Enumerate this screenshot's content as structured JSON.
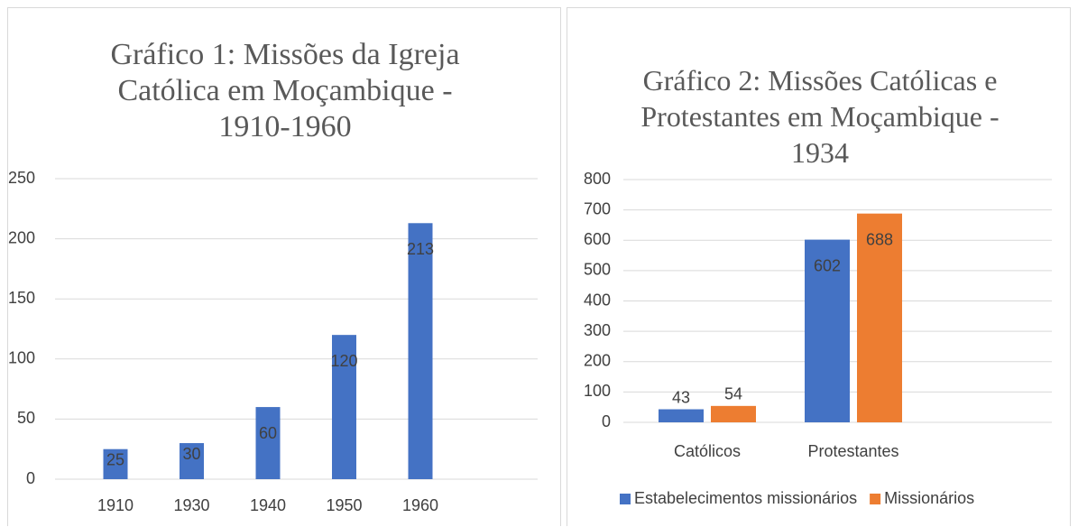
{
  "chart_data": [
    {
      "type": "bar",
      "title": "Gráfico 1: Missões da Igreja Católica em Moçambique - 1910-1960",
      "categories": [
        "1910",
        "1930",
        "1940",
        "1950",
        "1960"
      ],
      "series": [
        {
          "name": null,
          "color": "#4472c4",
          "values": [
            25,
            30,
            60,
            120,
            213
          ]
        }
      ],
      "ylim": [
        0,
        250
      ],
      "yticks": [
        0,
        50,
        100,
        150,
        200,
        250
      ],
      "grid": true,
      "legend": null
    },
    {
      "type": "bar",
      "title": "Gráfico 2: Missões Católicas e Protestantes em Moçambique - 1934",
      "categories": [
        "Católicos",
        "Protestantes"
      ],
      "series": [
        {
          "name": "Estabelecimentos missionários",
          "color": "#4472c4",
          "values": [
            43,
            602
          ]
        },
        {
          "name": "Missionários",
          "color": "#ed7d31",
          "values": [
            54,
            688
          ]
        }
      ],
      "ylim": [
        0,
        800
      ],
      "yticks": [
        0,
        100,
        200,
        300,
        400,
        500,
        600,
        700,
        800
      ],
      "grid": true,
      "legend": "bottom"
    }
  ]
}
